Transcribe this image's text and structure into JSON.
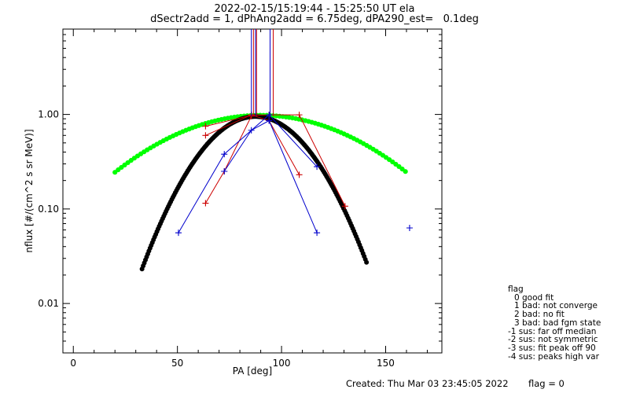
{
  "title": "2022-02-15/15:19:44 - 15:25:50 UT ela",
  "subtitle": "dSectr2add = 1, dPhAng2add = 6.75deg, dPA290_est=   0.1deg",
  "footer": {
    "created": "Created: Thu Mar 03 23:45:05 2022",
    "flag": "flag = 0"
  },
  "legend": {
    "title": "flag",
    "items": [
      "0 good fit",
      "1 bad: not converge",
      "2 bad: no fit",
      "3 bad: bad fgm state",
      "-1 sus: far off median",
      "-2 sus: not symmetric",
      "-3 sus: fit peak off 90",
      "-4 sus: peaks high var"
    ]
  },
  "colors": {
    "red": "#cc0000",
    "blue": "#0000cc",
    "green": "#00ff00",
    "black": "#000000",
    "axis": "#000000"
  },
  "chart_data": {
    "type": "scatter",
    "xlabel": "PA [deg]",
    "ylabel": "nflux [#/(cm^2 s sr MeV)]",
    "xlim": [
      -5,
      177
    ],
    "ylim": [
      0.003,
      8
    ],
    "ylog": true,
    "xticks": [
      0,
      50,
      100,
      150
    ],
    "xtick_labels": [
      "0",
      "50",
      "100",
      "150"
    ],
    "yticks": [
      0.01,
      0.1,
      1.0
    ],
    "ytick_labels": [
      "0.01",
      "0.10",
      "1.00"
    ],
    "vlines": {
      "red": [
        86.5,
        88.0,
        96.0
      ],
      "blue": [
        85.5,
        87.5,
        94.5
      ]
    },
    "series": [
      {
        "color": "red",
        "style": "line+plus",
        "segments": [
          [
            [
              63.5,
              0.75
            ],
            [
              85.5,
              0.98
            ],
            [
              94.0,
              0.99
            ],
            [
              108.5,
              0.99
            ],
            [
              130.5,
              0.107
            ]
          ],
          [
            [
              63.5,
              0.6
            ],
            [
              85.5,
              0.99
            ],
            [
              94.0,
              0.86
            ],
            [
              108.5,
              0.23
            ]
          ],
          [
            [
              63.5,
              0.115
            ],
            [
              72.5,
              0.25
            ],
            [
              85.5,
              0.96
            ]
          ]
        ]
      },
      {
        "color": "blue",
        "style": "line+plus",
        "segments": [
          [
            [
              50.5,
              0.056
            ],
            [
              72.5,
              0.38
            ],
            [
              94.0,
              0.99
            ],
            [
              117.0,
              0.28
            ]
          ],
          [
            [
              72.5,
              0.25
            ],
            [
              85.5,
              0.68
            ],
            [
              94.0,
              0.86
            ],
            [
              117.0,
              0.056
            ]
          ]
        ],
        "points": [
          [
            161.5,
            0.063
          ]
        ]
      },
      {
        "color": "green",
        "style": "dots",
        "curve": "gaussian",
        "center": 90,
        "peak": 0.98,
        "sigma_deg": 42,
        "x_range": [
          20,
          160
        ]
      },
      {
        "color": "black",
        "style": "dots",
        "curve": "gaussian",
        "center": 87.5,
        "peak": 0.95,
        "sigma_deg": 20,
        "x_range": [
          33,
          141
        ]
      }
    ]
  }
}
